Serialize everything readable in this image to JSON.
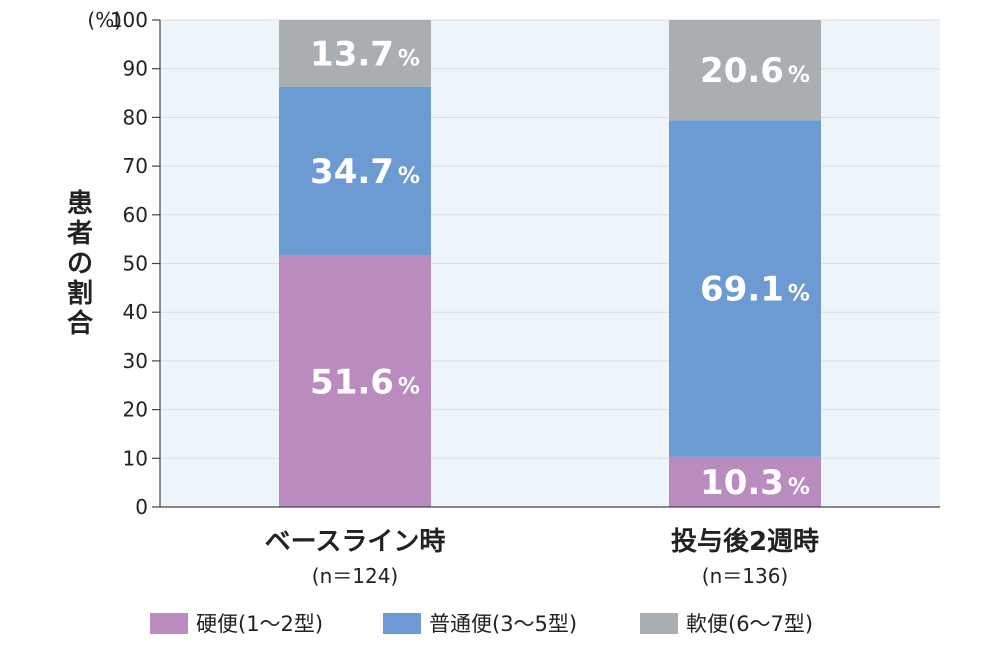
{
  "chart_data": {
    "type": "bar",
    "stacked": true,
    "unit_label": "(%)",
    "ylabel": "患者の割合",
    "ylim": [
      0,
      100
    ],
    "yticks": [
      0,
      10,
      20,
      30,
      40,
      50,
      60,
      70,
      80,
      90,
      100
    ],
    "grid": true,
    "categories": [
      "ベースライン時",
      "投与後2週時"
    ],
    "category_notes": [
      "(n＝124)",
      "(n＝136)"
    ],
    "series": [
      {
        "name": "硬便(1～2型)",
        "color": "#b98bbf",
        "values": [
          51.6,
          10.3
        ]
      },
      {
        "name": "普通便(3～5型)",
        "color": "#6b9bd2",
        "values": [
          34.7,
          69.1
        ]
      },
      {
        "name": "軟便(6～7型)",
        "color": "#a9aeb0",
        "values": [
          13.7,
          20.6
        ]
      }
    ],
    "data_label_suffix": "%",
    "legend_position": "bottom",
    "plot_background": "#eef5fa"
  }
}
